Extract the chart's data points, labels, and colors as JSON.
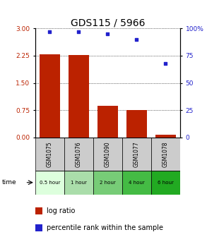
{
  "title": "GDS115 / 5966",
  "samples": [
    "GSM1075",
    "GSM1076",
    "GSM1090",
    "GSM1077",
    "GSM1078"
  ],
  "time_labels": [
    "0.5 hour",
    "1 hour",
    "2 hour",
    "4 hour",
    "6 hour"
  ],
  "log_ratio": [
    2.28,
    2.27,
    0.88,
    0.75,
    0.08
  ],
  "percentile": [
    97,
    97,
    95,
    90,
    68
  ],
  "ylim_left": [
    0,
    3
  ],
  "ylim_right": [
    0,
    100
  ],
  "yticks_left": [
    0,
    0.75,
    1.5,
    2.25,
    3
  ],
  "yticks_right": [
    0,
    25,
    50,
    75,
    100
  ],
  "bar_color": "#bb2200",
  "dot_color": "#2222cc",
  "time_colors": [
    "#ddffdd",
    "#aaddaa",
    "#77cc77",
    "#44bb44",
    "#22aa22"
  ],
  "sample_bg": "#cccccc",
  "title_fontsize": 10,
  "tick_fontsize": 6.5,
  "legend_fontsize": 7
}
